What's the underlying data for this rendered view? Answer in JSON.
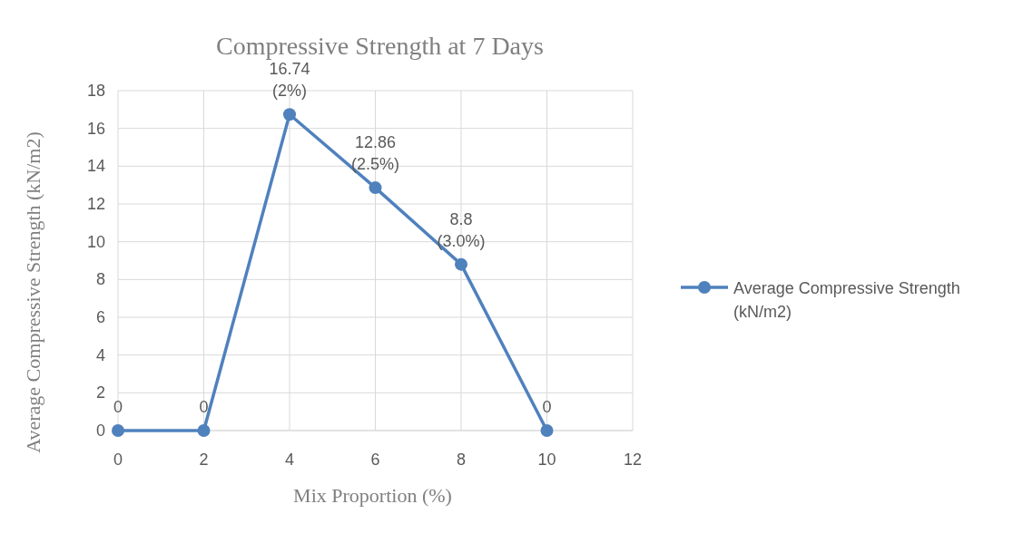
{
  "chart_data": {
    "type": "line",
    "title": "Compressive Strength at 7 Days",
    "xlabel": "Mix Proportion (%)",
    "ylabel": "Average Compressive Strength (kN/m2)",
    "x": [
      0,
      2,
      4,
      6,
      8,
      10
    ],
    "series": [
      {
        "name": "Average Compressive Strength (kN/m2)",
        "color": "#4f81bd",
        "values": [
          0,
          0,
          16.74,
          12.86,
          8.8,
          0
        ],
        "value_labels": [
          "0",
          "0",
          "16.74\n(2%)",
          "12.86\n(2.5%)",
          "8.8\n(3.0%)",
          "0"
        ]
      }
    ],
    "xlim": [
      0,
      12
    ],
    "xticks": [
      0,
      2,
      4,
      6,
      8,
      10,
      12
    ],
    "ylim": [
      0,
      18
    ],
    "yticks": [
      0,
      2,
      4,
      6,
      8,
      10,
      12,
      14,
      16,
      18
    ],
    "grid": true,
    "legend": "right",
    "marker": "circle",
    "line_style": "solid"
  }
}
